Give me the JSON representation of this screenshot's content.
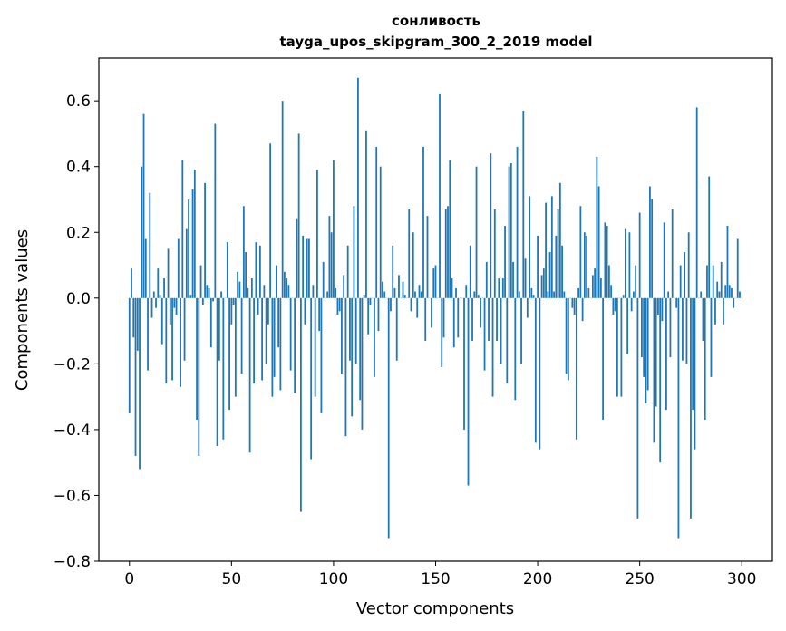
{
  "chart_data": {
    "type": "bar",
    "title": "сонливость",
    "subtitle": "tayga_upos_skipgram_300_2_2019 model",
    "xlabel": "Vector components",
    "ylabel": "Components values",
    "xlim": [
      -15,
      315
    ],
    "ylim": [
      -0.8,
      0.73
    ],
    "xticks": [
      0,
      50,
      100,
      150,
      200,
      250,
      300
    ],
    "yticks": [
      -0.8,
      -0.6,
      -0.4,
      -0.2,
      0.0,
      0.2,
      0.4,
      0.6
    ],
    "ytick_labels": [
      "−0.8",
      "−0.6",
      "−0.4",
      "−0.2",
      "0.0",
      "0.2",
      "0.4",
      "0.6"
    ],
    "bar_color": "#1f77b4",
    "x": "0..299 (one bar per component)",
    "values": [
      -0.35,
      0.09,
      -0.12,
      -0.48,
      -0.16,
      -0.52,
      0.4,
      0.56,
      0.18,
      -0.22,
      0.32,
      -0.06,
      0.02,
      -0.03,
      0.09,
      0.01,
      -0.14,
      0.06,
      -0.26,
      0.15,
      -0.08,
      -0.25,
      -0.03,
      -0.05,
      0.18,
      -0.27,
      0.42,
      -0.19,
      0.21,
      0.3,
      0.01,
      0.33,
      0.39,
      -0.37,
      -0.48,
      0.1,
      -0.02,
      0.35,
      0.04,
      0.03,
      -0.15,
      -0.01,
      0.53,
      -0.45,
      -0.19,
      0.02,
      -0.43,
      0.0,
      0.17,
      -0.34,
      -0.08,
      -0.02,
      -0.3,
      0.08,
      0.05,
      -0.23,
      0.28,
      0.14,
      0.03,
      -0.47,
      0.06,
      -0.26,
      0.17,
      -0.05,
      0.16,
      -0.25,
      0.04,
      -0.2,
      -0.08,
      0.47,
      -0.3,
      -0.24,
      0.1,
      -0.15,
      -0.28,
      0.6,
      0.08,
      0.06,
      0.04,
      -0.22,
      0.0,
      -0.29,
      0.24,
      0.5,
      -0.65,
      0.19,
      -0.08,
      0.18,
      0.18,
      -0.49,
      0.04,
      -0.3,
      0.39,
      -0.1,
      -0.35,
      0.11,
      0.0,
      0.02,
      0.25,
      0.2,
      0.42,
      0.03,
      -0.05,
      -0.04,
      -0.23,
      0.07,
      -0.42,
      0.16,
      -0.19,
      -0.36,
      0.28,
      -0.2,
      0.67,
      -0.31,
      -0.4,
      0.01,
      0.51,
      -0.11,
      -0.02,
      0.0,
      -0.24,
      0.46,
      -0.1,
      0.4,
      0.05,
      0.02,
      0.0,
      -0.73,
      -0.04,
      0.16,
      0.03,
      -0.19,
      0.07,
      0.0,
      0.05,
      0.01,
      0.0,
      0.27,
      -0.04,
      0.2,
      0.02,
      -0.06,
      0.04,
      0.02,
      0.46,
      -0.13,
      0.25,
      0.0,
      -0.09,
      0.09,
      0.1,
      0.0,
      0.62,
      -0.21,
      -0.12,
      0.27,
      0.28,
      0.42,
      0.06,
      -0.15,
      0.03,
      -0.12,
      0.0,
      0.0,
      -0.4,
      0.04,
      -0.57,
      0.16,
      -0.13,
      0.02,
      0.4,
      0.01,
      -0.09,
      0.0,
      -0.22,
      0.11,
      -0.13,
      0.44,
      -0.3,
      0.27,
      -0.13,
      0.06,
      -0.2,
      0.06,
      0.22,
      -0.26,
      0.4,
      0.41,
      0.11,
      -0.31,
      0.46,
      0.02,
      -0.2,
      0.57,
      0.12,
      -0.06,
      0.31,
      0.03,
      0.01,
      -0.44,
      0.19,
      -0.46,
      0.07,
      0.09,
      0.29,
      0.02,
      0.14,
      0.31,
      0.02,
      0.19,
      0.27,
      0.35,
      0.16,
      0.02,
      -0.23,
      -0.25,
      0.0,
      -0.03,
      -0.05,
      -0.43,
      0.03,
      0.28,
      -0.07,
      0.2,
      0.19,
      0.03,
      0.0,
      0.07,
      0.09,
      0.43,
      0.34,
      0.06,
      -0.37,
      0.23,
      0.22,
      0.1,
      0.04,
      -0.05,
      -0.04,
      -0.3,
      0.0,
      -0.3,
      0.01,
      0.21,
      -0.17,
      0.2,
      -0.04,
      0.02,
      0.1,
      -0.67,
      0.26,
      -0.18,
      -0.24,
      -0.32,
      -0.28,
      0.34,
      0.3,
      -0.44,
      -0.33,
      -0.05,
      -0.5,
      -0.07,
      0.23,
      -0.34,
      0.02,
      -0.18,
      0.27,
      0.0,
      -0.03,
      -0.73,
      0.1,
      -0.19,
      0.14,
      -0.2,
      0.2,
      -0.67,
      -0.34,
      -0.46,
      0.58,
      0.0,
      0.02,
      -0.13,
      -0.37,
      0.1,
      0.37,
      -0.24,
      0.1,
      -0.08,
      0.05,
      0.02,
      0.11,
      -0.08,
      0.04,
      0.22,
      0.04,
      0.03,
      -0.03,
      0.0,
      0.18,
      0.02
    ]
  }
}
